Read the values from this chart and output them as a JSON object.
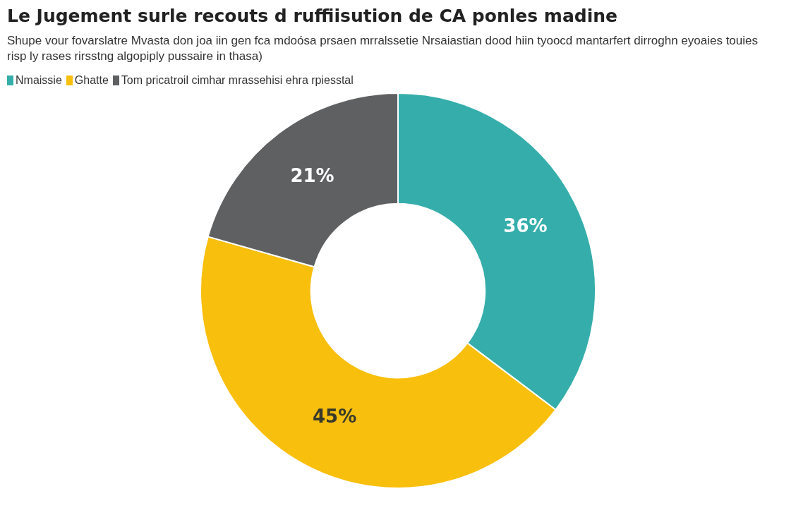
{
  "chart_data": {
    "type": "donut",
    "title": "Le Jugement surle recouts d ruffiisution de CA ponles madine",
    "subtitle": "Shupe vour fovarslatre Mvasta don joa iin gen fca mdoósa prsaen mrralssetie Nrsaiastian dood hiin tyoocd mantarfert dirroghn eyoaies touies risp ly rases rirsstng algopiply pussaire in thasa)",
    "categories": [
      "Nmaissie",
      "Ghatte",
      "Tom pricatroil cimhar mrassehisi ehra rpiesstal"
    ],
    "values": [
      36,
      45,
      21
    ],
    "colors": [
      "#35aeab",
      "#f9bf0d",
      "#5f6061"
    ],
    "value_labels": [
      "36%",
      "45%",
      "21%"
    ],
    "legend": "top left"
  }
}
